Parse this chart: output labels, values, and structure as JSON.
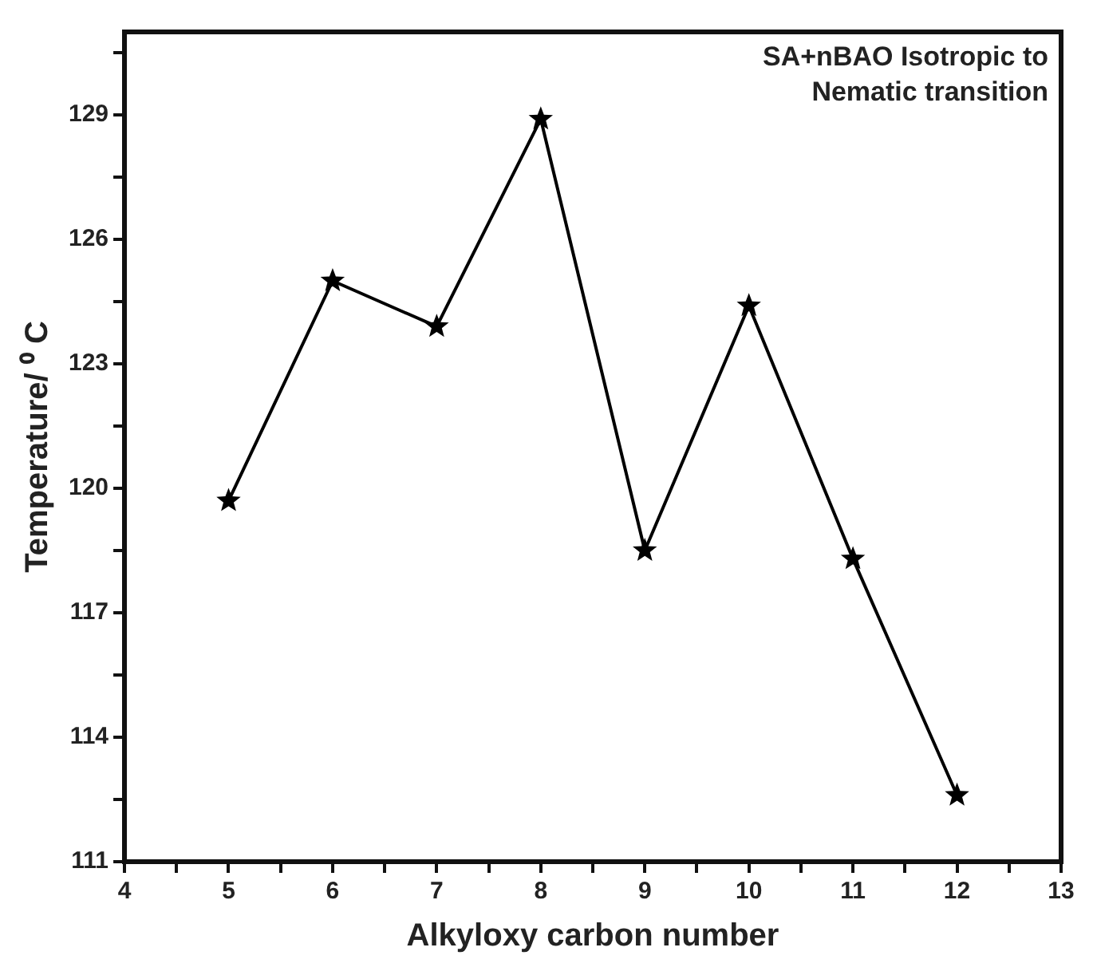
{
  "chart_data": {
    "type": "line",
    "xlabel": "Alkyloxy carbon number",
    "ylabel": "Temperature/ ⁰ C",
    "annotations": [
      "SA+nBAO Isotropic to Nematic transition"
    ],
    "x": [
      5,
      6,
      7,
      8,
      9,
      10,
      11,
      12
    ],
    "series": [
      {
        "color": "#000000",
        "values": [
          119.7,
          125.0,
          123.9,
          128.9,
          118.5,
          124.4,
          118.3,
          112.6
        ]
      }
    ],
    "xlim": [
      4,
      13
    ],
    "xticks": [
      4,
      {
        "value": 4.5,
        "label": null
      },
      5,
      {
        "value": 5.5,
        "label": null
      },
      6,
      {
        "value": 6.5,
        "label": null
      },
      7,
      {
        "value": 7.5,
        "label": null
      },
      8,
      {
        "value": 8.5,
        "label": null
      },
      9,
      {
        "value": 9.5,
        "label": null
      },
      10,
      {
        "value": 10.5,
        "label": null
      },
      11,
      {
        "value": 11.5,
        "label": null
      },
      12,
      {
        "value": 12.5,
        "label": null
      },
      13
    ],
    "ylim": [
      111,
      131
    ],
    "yticks": [
      111,
      {
        "value": 112.5,
        "label": null
      },
      114,
      {
        "value": 115.5,
        "label": null
      },
      117,
      {
        "value": 118.5,
        "label": null
      },
      120,
      {
        "value": 121.5,
        "label": null
      },
      123,
      {
        "value": 124.5,
        "label": null
      },
      126,
      {
        "value": 127.5,
        "label": null
      },
      129,
      {
        "value": 130.5,
        "label": null
      }
    ],
    "grid": false,
    "legend": false,
    "marker": "star",
    "line_style": "solid"
  }
}
